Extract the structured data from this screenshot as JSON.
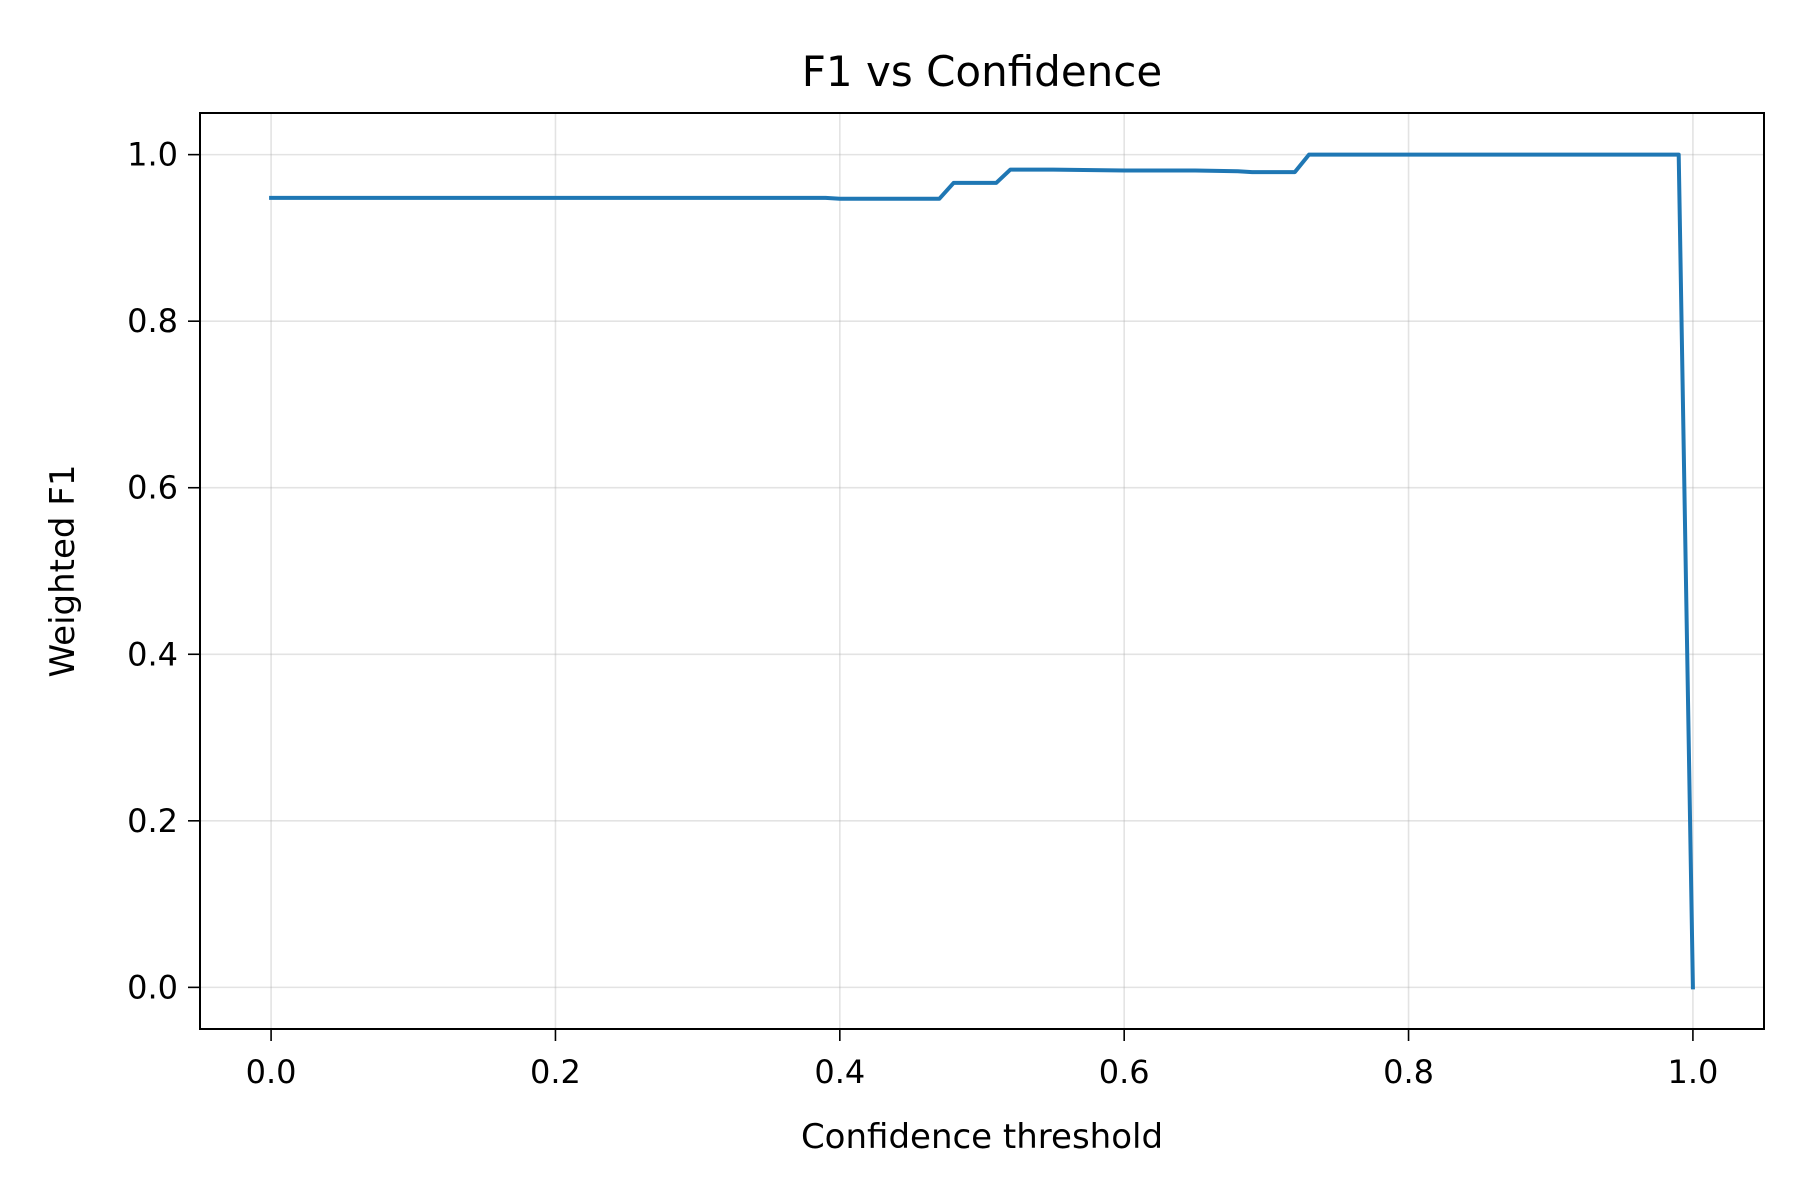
{
  "chart_data": {
    "type": "line",
    "title": "F1 vs Confidence",
    "xlabel": "Confidence threshold",
    "ylabel": "Weighted F1",
    "xlim": [
      -0.05,
      1.05
    ],
    "ylim": [
      -0.05,
      1.05
    ],
    "xticks": [
      0.0,
      0.2,
      0.4,
      0.6,
      0.8,
      1.0
    ],
    "xtick_labels": [
      "0.0",
      "0.2",
      "0.4",
      "0.6",
      "0.8",
      "1.0"
    ],
    "yticks": [
      0.0,
      0.2,
      0.4,
      0.6,
      0.8,
      1.0
    ],
    "ytick_labels": [
      "0.0",
      "0.2",
      "0.4",
      "0.6",
      "0.8",
      "1.0"
    ],
    "grid": true,
    "legend": false,
    "series": [
      {
        "color": "#1f77b4",
        "x": [
          0.0,
          0.39,
          0.4,
          0.47,
          0.48,
          0.51,
          0.52,
          0.55,
          0.6,
          0.65,
          0.68,
          0.69,
          0.72,
          0.73,
          0.8,
          0.99,
          1.0
        ],
        "y": [
          0.948,
          0.948,
          0.947,
          0.947,
          0.966,
          0.966,
          0.982,
          0.982,
          0.981,
          0.981,
          0.98,
          0.979,
          0.979,
          1.0,
          1.0,
          1.0,
          0.0
        ]
      }
    ]
  }
}
